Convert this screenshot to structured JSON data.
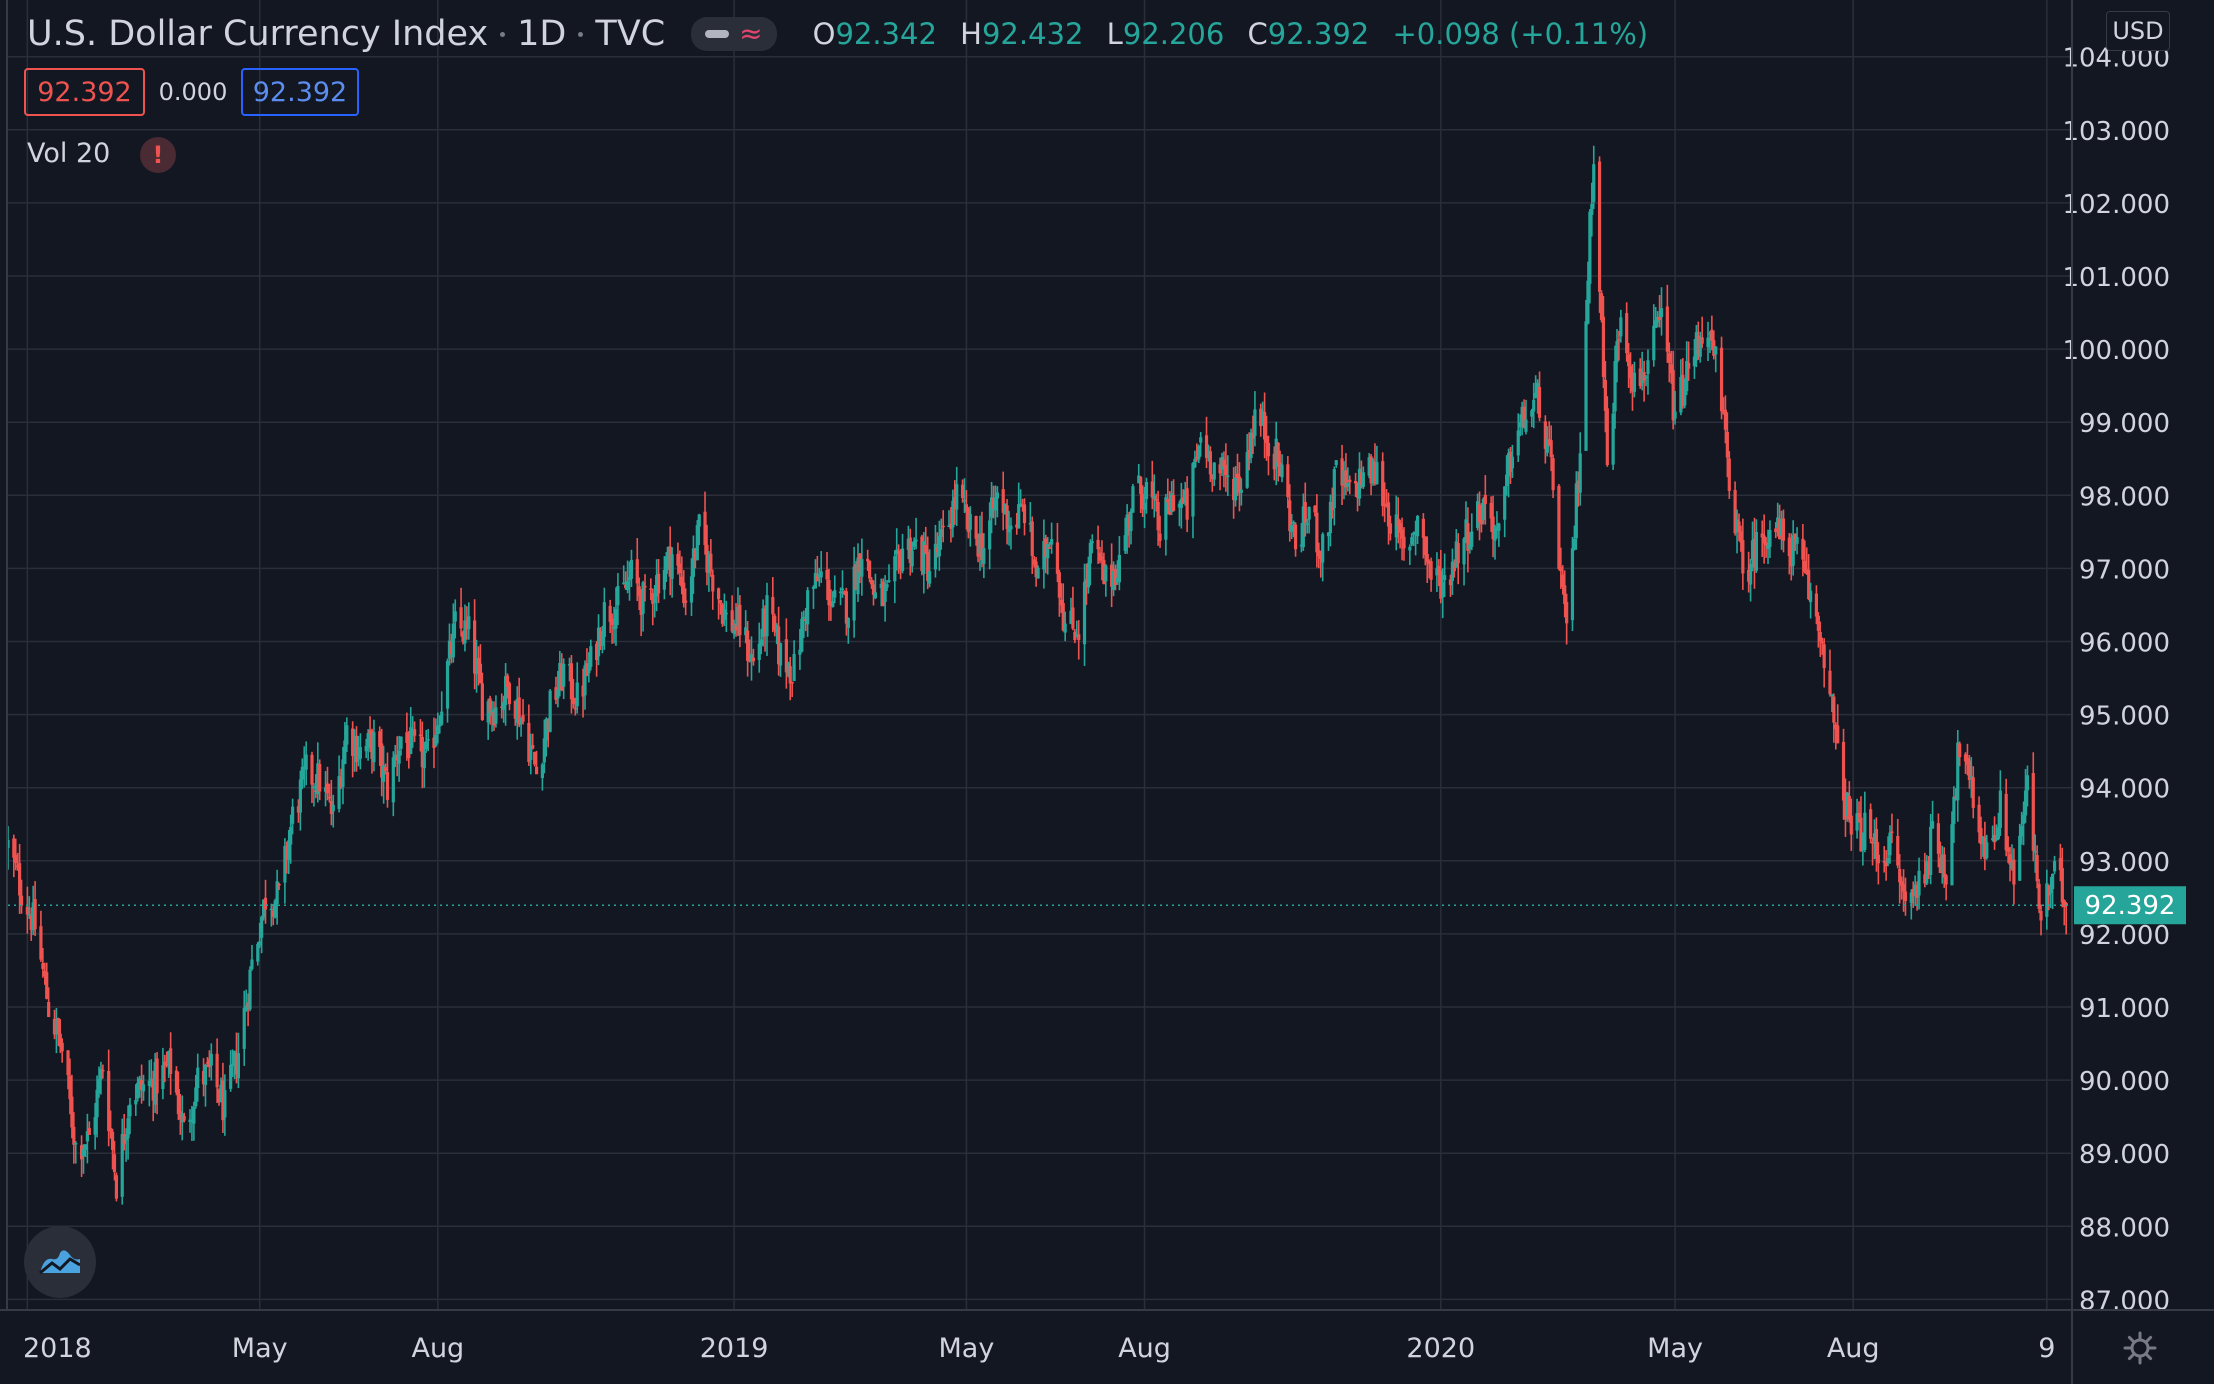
{
  "header": {
    "symbol": "U.S. Dollar Currency Index",
    "interval": "1D",
    "exchange": "TVC",
    "ohlc": {
      "o_label": "O",
      "o": "92.342",
      "h_label": "H",
      "h": "92.432",
      "l_label": "L",
      "l": "92.206",
      "c_label": "C",
      "c": "92.392",
      "change": "+0.098 (+0.11%)"
    }
  },
  "price_boxes": {
    "bid": "92.392",
    "spread": "0.000",
    "ask": "92.392"
  },
  "volume": {
    "label": "Vol 20",
    "warning": "!"
  },
  "currency_button": "USD",
  "last_price_label": "92.392",
  "colors": {
    "background": "#131722",
    "up": "#26a69a",
    "down": "#ef5350",
    "grid": "#2a2e39",
    "text": "#d1d4dc"
  },
  "icons": {
    "logo": "tradingview-logo-icon",
    "settings": "gear-icon",
    "warning": "warning-icon",
    "toggle": "chart-style-toggle-icon"
  },
  "chart_data": {
    "type": "candlestick",
    "x_tick_labels": [
      "2018",
      "May",
      "Aug",
      "2019",
      "May",
      "Aug",
      "2020",
      "May",
      "Aug",
      "9"
    ],
    "x_tick_dates": [
      "2018-01-01",
      "2018-05-01",
      "2018-08-01",
      "2019-01-01",
      "2019-05-01",
      "2019-08-01",
      "2020-01-01",
      "2020-05-01",
      "2020-08-01",
      "2020-11-09"
    ],
    "x_range": [
      "2017-12-22",
      "2020-11-22"
    ],
    "y_tick_labels": [
      "104.000",
      "103.000",
      "102.000",
      "101.000",
      "100.000",
      "99.000",
      "98.000",
      "97.000",
      "96.000",
      "95.000",
      "94.000",
      "93.000",
      "92.000",
      "91.000",
      "90.000",
      "89.000",
      "88.000",
      "87.000"
    ],
    "ylim": [
      86.8,
      104.2
    ],
    "last_price": 92.392,
    "grid": true,
    "key_points": [
      [
        "2017-12-22",
        93.2
      ],
      [
        "2017-12-29",
        92.6
      ],
      [
        "2018-01-05",
        92.1
      ],
      [
        "2018-01-12",
        91.0
      ],
      [
        "2018-01-19",
        90.4
      ],
      [
        "2018-01-26",
        89.1
      ],
      [
        "2018-02-02",
        89.2
      ],
      [
        "2018-02-09",
        90.2
      ],
      [
        "2018-02-16",
        88.6
      ],
      [
        "2018-02-23",
        89.8
      ],
      [
        "2018-03-02",
        89.9
      ],
      [
        "2018-03-09",
        90.0
      ],
      [
        "2018-03-16",
        90.2
      ],
      [
        "2018-03-23",
        89.3
      ],
      [
        "2018-03-30",
        90.0
      ],
      [
        "2018-04-06",
        90.1
      ],
      [
        "2018-04-13",
        89.6
      ],
      [
        "2018-04-20",
        90.4
      ],
      [
        "2018-04-27",
        91.6
      ],
      [
        "2018-05-04",
        92.5
      ],
      [
        "2018-05-11",
        92.5
      ],
      [
        "2018-05-18",
        93.6
      ],
      [
        "2018-05-25",
        94.2
      ],
      [
        "2018-06-01",
        94.1
      ],
      [
        "2018-06-08",
        93.6
      ],
      [
        "2018-06-15",
        94.8
      ],
      [
        "2018-06-22",
        94.5
      ],
      [
        "2018-06-29",
        94.6
      ],
      [
        "2018-07-06",
        94.0
      ],
      [
        "2018-07-13",
        94.7
      ],
      [
        "2018-07-20",
        94.5
      ],
      [
        "2018-07-27",
        94.4
      ],
      [
        "2018-08-03",
        95.2
      ],
      [
        "2018-08-10",
        96.2
      ],
      [
        "2018-08-17",
        96.1
      ],
      [
        "2018-08-24",
        95.2
      ],
      [
        "2018-08-31",
        95.1
      ],
      [
        "2018-09-07",
        95.4
      ],
      [
        "2018-09-14",
        94.9
      ],
      [
        "2018-09-21",
        94.2
      ],
      [
        "2018-09-28",
        95.1
      ],
      [
        "2018-10-05",
        95.6
      ],
      [
        "2018-10-12",
        95.2
      ],
      [
        "2018-10-19",
        95.7
      ],
      [
        "2018-10-26",
        96.4
      ],
      [
        "2018-11-02",
        96.5
      ],
      [
        "2018-11-09",
        96.9
      ],
      [
        "2018-11-16",
        96.5
      ],
      [
        "2018-11-23",
        96.9
      ],
      [
        "2018-11-30",
        97.2
      ],
      [
        "2018-12-07",
        96.6
      ],
      [
        "2018-12-14",
        97.5
      ],
      [
        "2018-12-21",
        96.9
      ],
      [
        "2018-12-28",
        96.3
      ],
      [
        "2019-01-04",
        96.2
      ],
      [
        "2019-01-11",
        95.7
      ],
      [
        "2019-01-18",
        96.4
      ],
      [
        "2019-01-25",
        95.8
      ],
      [
        "2019-02-01",
        95.6
      ],
      [
        "2019-02-08",
        96.6
      ],
      [
        "2019-02-15",
        96.9
      ],
      [
        "2019-02-22",
        96.5
      ],
      [
        "2019-03-01",
        96.5
      ],
      [
        "2019-03-08",
        97.3
      ],
      [
        "2019-03-15",
        96.6
      ],
      [
        "2019-03-22",
        96.6
      ],
      [
        "2019-03-29",
        97.3
      ],
      [
        "2019-04-05",
        97.3
      ],
      [
        "2019-04-12",
        97.0
      ],
      [
        "2019-04-19",
        97.4
      ],
      [
        "2019-04-26",
        98.0
      ],
      [
        "2019-05-03",
        97.5
      ],
      [
        "2019-05-10",
        97.3
      ],
      [
        "2019-05-17",
        98.0
      ],
      [
        "2019-05-24",
        97.6
      ],
      [
        "2019-05-31",
        97.8
      ],
      [
        "2019-06-07",
        96.8
      ],
      [
        "2019-06-14",
        97.6
      ],
      [
        "2019-06-21",
        96.2
      ],
      [
        "2019-06-28",
        96.2
      ],
      [
        "2019-07-05",
        97.3
      ],
      [
        "2019-07-12",
        96.8
      ],
      [
        "2019-07-19",
        97.1
      ],
      [
        "2019-07-26",
        98.0
      ],
      [
        "2019-08-02",
        98.1
      ],
      [
        "2019-08-09",
        97.5
      ],
      [
        "2019-08-16",
        98.0
      ],
      [
        "2019-08-23",
        97.8
      ],
      [
        "2019-08-30",
        98.8
      ],
      [
        "2019-09-06",
        98.4
      ],
      [
        "2019-09-13",
        98.2
      ],
      [
        "2019-09-20",
        98.2
      ],
      [
        "2019-09-27",
        99.1
      ],
      [
        "2019-10-04",
        98.8
      ],
      [
        "2019-10-11",
        98.3
      ],
      [
        "2019-10-18",
        97.3
      ],
      [
        "2019-10-25",
        97.8
      ],
      [
        "2019-11-01",
        97.2
      ],
      [
        "2019-11-08",
        98.3
      ],
      [
        "2019-11-15",
        98.0
      ],
      [
        "2019-11-22",
        98.3
      ],
      [
        "2019-11-29",
        98.3
      ],
      [
        "2019-12-06",
        97.7
      ],
      [
        "2019-12-13",
        97.2
      ],
      [
        "2019-12-20",
        97.7
      ],
      [
        "2019-12-27",
        96.9
      ],
      [
        "2020-01-03",
        96.8
      ],
      [
        "2020-01-10",
        97.3
      ],
      [
        "2020-01-17",
        97.6
      ],
      [
        "2020-01-24",
        97.9
      ],
      [
        "2020-01-31",
        97.4
      ],
      [
        "2020-02-07",
        98.7
      ],
      [
        "2020-02-14",
        99.1
      ],
      [
        "2020-02-21",
        99.3
      ],
      [
        "2020-02-28",
        98.1
      ],
      [
        "2020-03-06",
        96.0
      ],
      [
        "2020-03-13",
        98.7
      ],
      [
        "2020-03-20",
        102.8
      ],
      [
        "2020-03-27",
        98.4
      ],
      [
        "2020-04-03",
        100.6
      ],
      [
        "2020-04-10",
        99.5
      ],
      [
        "2020-04-17",
        99.8
      ],
      [
        "2020-04-24",
        100.4
      ],
      [
        "2020-05-01",
        99.1
      ],
      [
        "2020-05-08",
        99.7
      ],
      [
        "2020-05-15",
        100.3
      ],
      [
        "2020-05-22",
        99.8
      ],
      [
        "2020-05-29",
        98.3
      ],
      [
        "2020-06-05",
        96.9
      ],
      [
        "2020-06-12",
        97.3
      ],
      [
        "2020-06-19",
        97.6
      ],
      [
        "2020-06-26",
        97.4
      ],
      [
        "2020-07-03",
        97.2
      ],
      [
        "2020-07-10",
        96.6
      ],
      [
        "2020-07-17",
        95.9
      ],
      [
        "2020-07-24",
        94.4
      ],
      [
        "2020-07-31",
        93.4
      ],
      [
        "2020-08-07",
        93.4
      ],
      [
        "2020-08-14",
        93.1
      ],
      [
        "2020-08-21",
        93.2
      ],
      [
        "2020-08-28",
        92.4
      ],
      [
        "2020-09-04",
        92.7
      ],
      [
        "2020-09-11",
        93.3
      ],
      [
        "2020-09-18",
        92.9
      ],
      [
        "2020-09-25",
        94.6
      ],
      [
        "2020-10-02",
        93.8
      ],
      [
        "2020-10-09",
        93.1
      ],
      [
        "2020-10-16",
        93.7
      ],
      [
        "2020-10-23",
        92.8
      ],
      [
        "2020-10-30",
        94.0
      ],
      [
        "2020-11-06",
        92.2
      ],
      [
        "2020-11-13",
        92.8
      ],
      [
        "2020-11-20",
        92.39
      ]
    ]
  }
}
